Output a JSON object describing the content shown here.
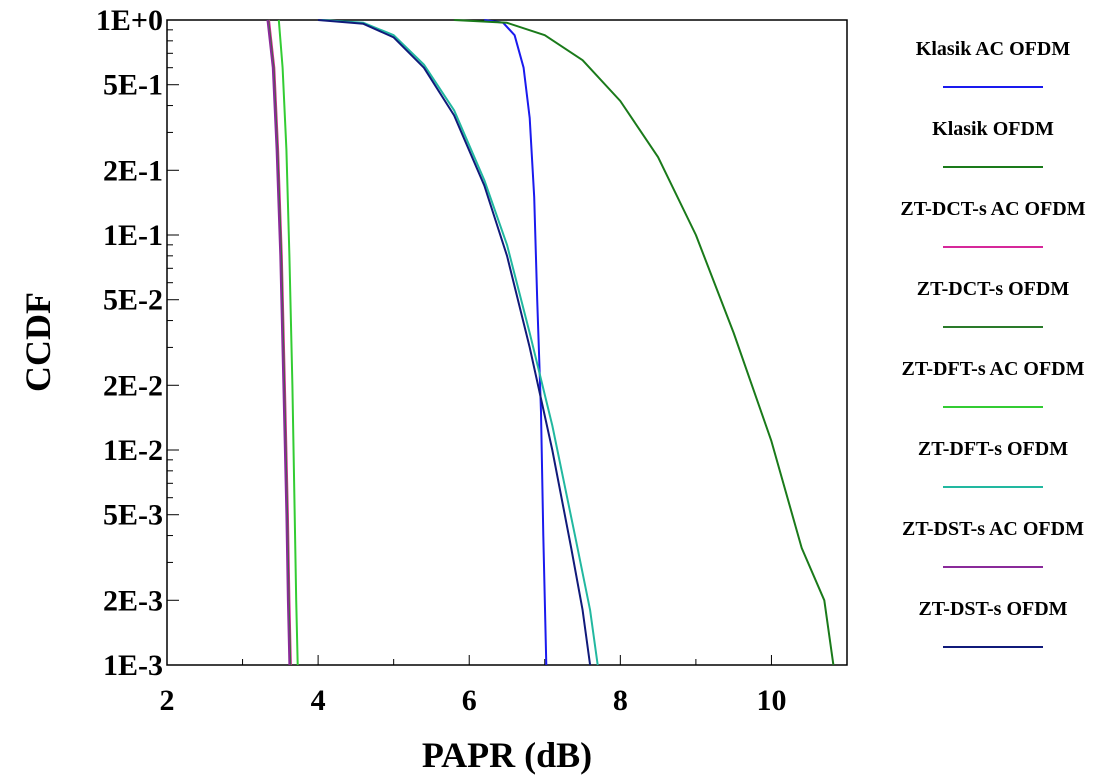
{
  "chart_data": {
    "type": "line",
    "title": "",
    "xlabel": "PAPR (dB)",
    "ylabel": "CCDF",
    "xlim": [
      2,
      11
    ],
    "ylim": [
      0.001,
      1
    ],
    "yscale": "log",
    "grid": false,
    "legend_position": "right",
    "x_ticks": [
      {
        "value": 2,
        "label": "2"
      },
      {
        "value": 4,
        "label": "4"
      },
      {
        "value": 6,
        "label": "6"
      },
      {
        "value": 8,
        "label": "8"
      },
      {
        "value": 10,
        "label": "10"
      }
    ],
    "x_minor_ticks": [
      3,
      5,
      7,
      9
    ],
    "y_ticks": [
      {
        "value": 1,
        "label": "1E+0"
      },
      {
        "value": 0.5,
        "label": "5E-1"
      },
      {
        "value": 0.2,
        "label": "2E-1"
      },
      {
        "value": 0.1,
        "label": "1E-1"
      },
      {
        "value": 0.05,
        "label": "5E-2"
      },
      {
        "value": 0.02,
        "label": "2E-2"
      },
      {
        "value": 0.01,
        "label": "1E-2"
      },
      {
        "value": 0.005,
        "label": "5E-3"
      },
      {
        "value": 0.002,
        "label": "2E-3"
      },
      {
        "value": 0.001,
        "label": "1E-3"
      }
    ],
    "series": [
      {
        "name": "Klasik AC OFDM",
        "color": "#1a1aee",
        "points": [
          [
            6.2,
            1.0
          ],
          [
            6.45,
            0.97
          ],
          [
            6.6,
            0.85
          ],
          [
            6.72,
            0.6
          ],
          [
            6.8,
            0.35
          ],
          [
            6.86,
            0.15
          ],
          [
            6.9,
            0.05
          ],
          [
            6.95,
            0.015
          ],
          [
            6.98,
            0.004
          ],
          [
            7.02,
            0.001
          ]
        ]
      },
      {
        "name": "Klasik OFDM",
        "color": "#1a7a1a",
        "points": [
          [
            5.8,
            1.0
          ],
          [
            6.5,
            0.97
          ],
          [
            7.0,
            0.85
          ],
          [
            7.5,
            0.65
          ],
          [
            8.0,
            0.42
          ],
          [
            8.5,
            0.23
          ],
          [
            9.0,
            0.1
          ],
          [
            9.5,
            0.035
          ],
          [
            10.0,
            0.011
          ],
          [
            10.4,
            0.0035
          ],
          [
            10.7,
            0.002
          ],
          [
            10.82,
            0.001
          ]
        ]
      },
      {
        "name": "ZT-DCT-s AC OFDM",
        "color": "#d6289a",
        "points": [
          [
            3.35,
            1.0
          ],
          [
            3.42,
            0.6
          ],
          [
            3.47,
            0.25
          ],
          [
            3.52,
            0.08
          ],
          [
            3.56,
            0.02
          ],
          [
            3.6,
            0.005
          ],
          [
            3.62,
            0.002
          ],
          [
            3.64,
            0.001
          ]
        ]
      },
      {
        "name": "ZT-DCT-s OFDM",
        "color": "#2a7a2a",
        "points": [
          [
            3.34,
            1.0
          ],
          [
            3.41,
            0.6
          ],
          [
            3.46,
            0.25
          ],
          [
            3.51,
            0.08
          ],
          [
            3.55,
            0.02
          ],
          [
            3.59,
            0.005
          ],
          [
            3.61,
            0.002
          ],
          [
            3.63,
            0.001
          ]
        ]
      },
      {
        "name": "ZT-DFT-s AC OFDM",
        "color": "#33cc33",
        "points": [
          [
            3.48,
            1.0
          ],
          [
            3.53,
            0.6
          ],
          [
            3.58,
            0.25
          ],
          [
            3.62,
            0.08
          ],
          [
            3.66,
            0.02
          ],
          [
            3.69,
            0.005
          ],
          [
            3.71,
            0.002
          ],
          [
            3.73,
            0.001
          ]
        ]
      },
      {
        "name": "ZT-DFT-s OFDM",
        "color": "#22b8a0",
        "points": [
          [
            4.05,
            1.0
          ],
          [
            4.6,
            0.97
          ],
          [
            5.0,
            0.85
          ],
          [
            5.4,
            0.62
          ],
          [
            5.8,
            0.38
          ],
          [
            6.2,
            0.18
          ],
          [
            6.5,
            0.09
          ],
          [
            6.8,
            0.035
          ],
          [
            7.1,
            0.013
          ],
          [
            7.4,
            0.004
          ],
          [
            7.6,
            0.0018
          ],
          [
            7.7,
            0.001
          ]
        ]
      },
      {
        "name": "ZT-DST-s AC OFDM",
        "color": "#8a2a9a",
        "points": [
          [
            3.33,
            1.0
          ],
          [
            3.4,
            0.6
          ],
          [
            3.45,
            0.25
          ],
          [
            3.5,
            0.08
          ],
          [
            3.54,
            0.02
          ],
          [
            3.58,
            0.005
          ],
          [
            3.6,
            0.002
          ],
          [
            3.62,
            0.001
          ]
        ]
      },
      {
        "name": "ZT-DST-s OFDM",
        "color": "#101a7a",
        "points": [
          [
            4.0,
            1.0
          ],
          [
            4.6,
            0.96
          ],
          [
            5.0,
            0.83
          ],
          [
            5.4,
            0.6
          ],
          [
            5.8,
            0.36
          ],
          [
            6.2,
            0.17
          ],
          [
            6.5,
            0.08
          ],
          [
            6.8,
            0.03
          ],
          [
            7.1,
            0.01
          ],
          [
            7.35,
            0.0035
          ],
          [
            7.5,
            0.0018
          ],
          [
            7.6,
            0.001
          ]
        ]
      }
    ]
  }
}
